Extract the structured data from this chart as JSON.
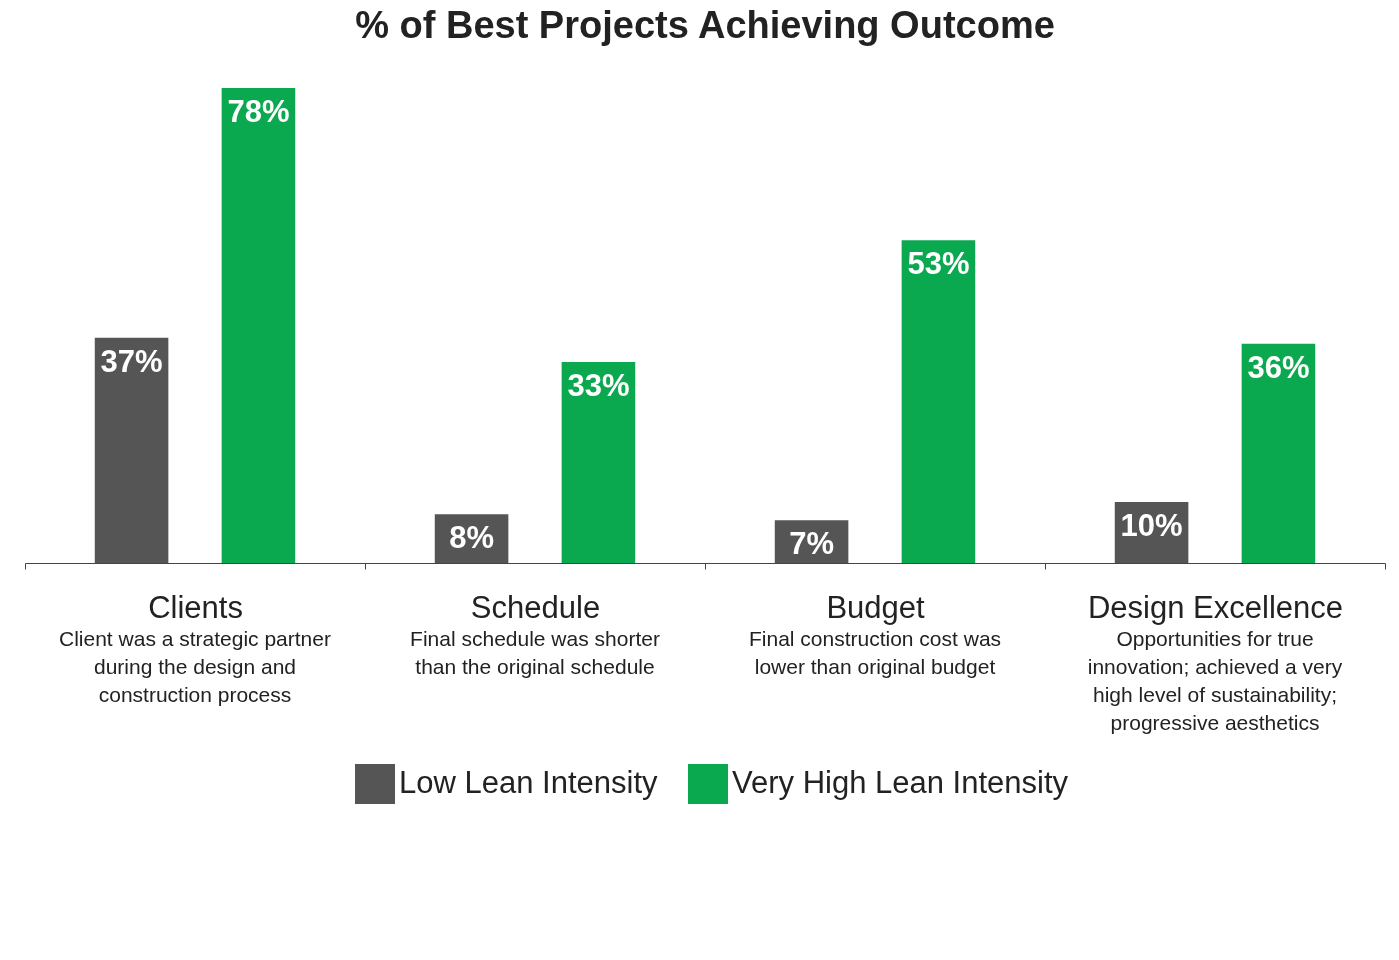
{
  "chart_data": {
    "type": "bar",
    "title": "% of Best Projects Achieving Outcome",
    "categories": [
      "Clients",
      "Schedule",
      "Budget",
      "Design Excellence"
    ],
    "series": [
      {
        "name": "Low Lean Intensity",
        "color": "#555555",
        "values": [
          37,
          8,
          7,
          10
        ],
        "value_labels": [
          "37%",
          "8%",
          "7%",
          "10%"
        ]
      },
      {
        "name": "Very High Lean Intensity",
        "color": "#0aa84f",
        "values": [
          78,
          33,
          53,
          36
        ],
        "value_labels": [
          "78%",
          "33%",
          "53%",
          "36%"
        ]
      }
    ],
    "annotations": [
      "Client was a strategic partner\nduring the design and\nconstruction process",
      "Final schedule was shorter\nthan the original schedule",
      "Final construction cost was\nlower than original budget",
      "Opportunities for true\ninnovation; achieved a very\nhigh level of sustainability;\nprogressive aesthetics"
    ],
    "legend": "bottom",
    "tick_labels": "x"
  }
}
